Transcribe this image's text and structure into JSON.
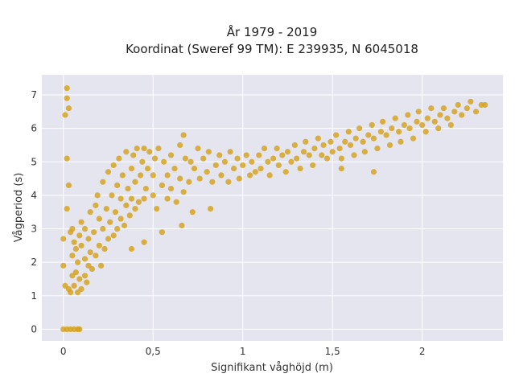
{
  "chart_data": {
    "type": "scatter",
    "title_line1": "År 1979 - 2019",
    "title_line2": "Koordinat (Sweref 99 TM): E 239935, N 6045018",
    "xlabel": "Signifikant våghöjd (m)",
    "ylabel": "Vågperiod (s)",
    "xlim": [
      -0.12,
      2.45
    ],
    "ylim": [
      -0.35,
      7.6
    ],
    "grid": true,
    "x_ticks": [
      {
        "value": 0,
        "label": "0"
      },
      {
        "value": 0.5,
        "label": "0,5"
      },
      {
        "value": 1,
        "label": "1"
      },
      {
        "value": 1.5,
        "label": "1,5"
      },
      {
        "value": 2,
        "label": "2"
      }
    ],
    "y_ticks": [
      {
        "value": 0,
        "label": "0"
      },
      {
        "value": 1,
        "label": "1"
      },
      {
        "value": 2,
        "label": "2"
      },
      {
        "value": 3,
        "label": "3"
      },
      {
        "value": 4,
        "label": "4"
      },
      {
        "value": 5,
        "label": "5"
      },
      {
        "value": 6,
        "label": "6"
      },
      {
        "value": 7,
        "label": "7"
      }
    ],
    "point_color": "#D4A017",
    "background_color": "#E5E5F0",
    "points": [
      [
        0.0,
        0.0
      ],
      [
        0.02,
        0.0
      ],
      [
        0.04,
        0.0
      ],
      [
        0.06,
        0.0
      ],
      [
        0.08,
        0.0
      ],
      [
        0.09,
        0.0
      ],
      [
        0.0,
        1.9
      ],
      [
        0.0,
        2.7
      ],
      [
        0.01,
        1.3
      ],
      [
        0.01,
        6.4
      ],
      [
        0.02,
        7.2
      ],
      [
        0.02,
        6.9
      ],
      [
        0.03,
        6.6
      ],
      [
        0.02,
        5.1
      ],
      [
        0.03,
        4.3
      ],
      [
        0.02,
        3.6
      ],
      [
        0.04,
        2.9
      ],
      [
        0.03,
        1.2
      ],
      [
        0.04,
        1.1
      ],
      [
        0.05,
        1.6
      ],
      [
        0.05,
        2.2
      ],
      [
        0.05,
        3.0
      ],
      [
        0.06,
        2.6
      ],
      [
        0.06,
        1.3
      ],
      [
        0.07,
        1.7
      ],
      [
        0.07,
        2.4
      ],
      [
        0.08,
        1.1
      ],
      [
        0.08,
        2.0
      ],
      [
        0.09,
        2.8
      ],
      [
        0.09,
        1.5
      ],
      [
        0.1,
        1.2
      ],
      [
        0.1,
        2.5
      ],
      [
        0.1,
        3.2
      ],
      [
        0.12,
        1.6
      ],
      [
        0.12,
        2.1
      ],
      [
        0.12,
        3.0
      ],
      [
        0.13,
        1.4
      ],
      [
        0.14,
        2.7
      ],
      [
        0.14,
        1.9
      ],
      [
        0.15,
        3.5
      ],
      [
        0.15,
        2.3
      ],
      [
        0.16,
        1.8
      ],
      [
        0.17,
        2.9
      ],
      [
        0.18,
        3.7
      ],
      [
        0.18,
        2.2
      ],
      [
        0.19,
        4.0
      ],
      [
        0.2,
        2.5
      ],
      [
        0.2,
        3.3
      ],
      [
        0.21,
        1.9
      ],
      [
        0.22,
        4.4
      ],
      [
        0.22,
        3.0
      ],
      [
        0.23,
        2.4
      ],
      [
        0.24,
        3.6
      ],
      [
        0.25,
        2.7
      ],
      [
        0.25,
        4.7
      ],
      [
        0.26,
        3.2
      ],
      [
        0.27,
        4.0
      ],
      [
        0.28,
        2.8
      ],
      [
        0.28,
        4.9
      ],
      [
        0.29,
        3.5
      ],
      [
        0.3,
        3.0
      ],
      [
        0.3,
        4.3
      ],
      [
        0.31,
        5.1
      ],
      [
        0.32,
        3.3
      ],
      [
        0.32,
        3.9
      ],
      [
        0.33,
        4.6
      ],
      [
        0.34,
        3.1
      ],
      [
        0.35,
        5.3
      ],
      [
        0.35,
        3.7
      ],
      [
        0.36,
        4.2
      ],
      [
        0.37,
        3.4
      ],
      [
        0.38,
        4.8
      ],
      [
        0.38,
        3.9
      ],
      [
        0.39,
        5.2
      ],
      [
        0.4,
        3.6
      ],
      [
        0.4,
        4.4
      ],
      [
        0.41,
        5.4
      ],
      [
        0.42,
        3.8
      ],
      [
        0.43,
        4.6
      ],
      [
        0.44,
        5.0
      ],
      [
        0.45,
        3.9
      ],
      [
        0.45,
        5.4
      ],
      [
        0.46,
        4.2
      ],
      [
        0.47,
        4.8
      ],
      [
        0.48,
        5.3
      ],
      [
        0.5,
        4.0
      ],
      [
        0.5,
        4.6
      ],
      [
        0.51,
        5.1
      ],
      [
        0.52,
        3.6
      ],
      [
        0.53,
        5.4
      ],
      [
        0.55,
        4.3
      ],
      [
        0.56,
        5.0
      ],
      [
        0.58,
        3.9
      ],
      [
        0.58,
        4.6
      ],
      [
        0.6,
        5.2
      ],
      [
        0.6,
        4.2
      ],
      [
        0.62,
        4.8
      ],
      [
        0.63,
        3.8
      ],
      [
        0.65,
        5.5
      ],
      [
        0.65,
        4.5
      ],
      [
        0.67,
        5.8
      ],
      [
        0.67,
        4.1
      ],
      [
        0.68,
        5.1
      ],
      [
        0.7,
        4.4
      ],
      [
        0.71,
        5.0
      ],
      [
        0.72,
        3.5
      ],
      [
        0.73,
        4.8
      ],
      [
        0.75,
        5.4
      ],
      [
        0.76,
        4.5
      ],
      [
        0.78,
        5.1
      ],
      [
        0.8,
        4.7
      ],
      [
        0.81,
        5.3
      ],
      [
        0.83,
        4.4
      ],
      [
        0.85,
        4.9
      ],
      [
        0.87,
        5.2
      ],
      [
        0.88,
        4.6
      ],
      [
        0.9,
        5.0
      ],
      [
        0.92,
        4.4
      ],
      [
        0.93,
        5.3
      ],
      [
        0.95,
        4.8
      ],
      [
        0.97,
        5.1
      ],
      [
        0.98,
        4.5
      ],
      [
        1.0,
        4.9
      ],
      [
        1.02,
        5.2
      ],
      [
        1.04,
        4.6
      ],
      [
        1.05,
        5.0
      ],
      [
        1.07,
        4.7
      ],
      [
        1.09,
        5.2
      ],
      [
        1.1,
        4.8
      ],
      [
        1.12,
        5.4
      ],
      [
        1.14,
        5.0
      ],
      [
        1.15,
        4.6
      ],
      [
        1.17,
        5.1
      ],
      [
        1.19,
        5.4
      ],
      [
        1.2,
        4.9
      ],
      [
        1.22,
        5.2
      ],
      [
        1.24,
        4.7
      ],
      [
        1.25,
        5.3
      ],
      [
        1.27,
        5.0
      ],
      [
        1.29,
        5.5
      ],
      [
        1.3,
        5.1
      ],
      [
        1.32,
        4.8
      ],
      [
        1.34,
        5.3
      ],
      [
        1.35,
        5.6
      ],
      [
        1.37,
        5.2
      ],
      [
        1.39,
        4.9
      ],
      [
        1.4,
        5.4
      ],
      [
        1.42,
        5.7
      ],
      [
        1.44,
        5.2
      ],
      [
        1.45,
        5.5
      ],
      [
        1.47,
        5.1
      ],
      [
        1.49,
        5.6
      ],
      [
        1.5,
        5.3
      ],
      [
        1.52,
        5.8
      ],
      [
        1.54,
        5.4
      ],
      [
        1.55,
        5.1
      ],
      [
        1.57,
        5.6
      ],
      [
        1.59,
        5.9
      ],
      [
        1.6,
        5.5
      ],
      [
        1.62,
        5.2
      ],
      [
        1.63,
        5.7
      ],
      [
        1.65,
        6.0
      ],
      [
        1.67,
        5.6
      ],
      [
        1.68,
        5.3
      ],
      [
        1.7,
        5.8
      ],
      [
        1.72,
        6.1
      ],
      [
        1.73,
        5.7
      ],
      [
        1.75,
        5.4
      ],
      [
        1.77,
        5.9
      ],
      [
        1.78,
        6.2
      ],
      [
        1.8,
        5.8
      ],
      [
        1.82,
        5.5
      ],
      [
        1.83,
        6.0
      ],
      [
        1.85,
        6.3
      ],
      [
        1.87,
        5.9
      ],
      [
        1.88,
        5.6
      ],
      [
        1.9,
        6.1
      ],
      [
        1.92,
        6.4
      ],
      [
        1.93,
        6.0
      ],
      [
        1.95,
        5.7
      ],
      [
        1.97,
        6.2
      ],
      [
        1.98,
        6.5
      ],
      [
        2.0,
        6.1
      ],
      [
        2.02,
        5.9
      ],
      [
        2.03,
        6.3
      ],
      [
        2.05,
        6.6
      ],
      [
        2.07,
        6.2
      ],
      [
        2.09,
        6.0
      ],
      [
        2.1,
        6.4
      ],
      [
        2.12,
        6.6
      ],
      [
        2.14,
        6.3
      ],
      [
        2.16,
        6.1
      ],
      [
        2.18,
        6.5
      ],
      [
        2.2,
        6.7
      ],
      [
        2.22,
        6.4
      ],
      [
        2.25,
        6.6
      ],
      [
        2.27,
        6.8
      ],
      [
        2.3,
        6.5
      ],
      [
        2.33,
        6.7
      ],
      [
        2.35,
        6.7
      ],
      [
        1.55,
        4.8
      ],
      [
        1.73,
        4.7
      ],
      [
        0.82,
        3.6
      ],
      [
        0.66,
        3.1
      ],
      [
        0.55,
        2.9
      ],
      [
        0.45,
        2.6
      ],
      [
        0.38,
        2.4
      ]
    ]
  }
}
